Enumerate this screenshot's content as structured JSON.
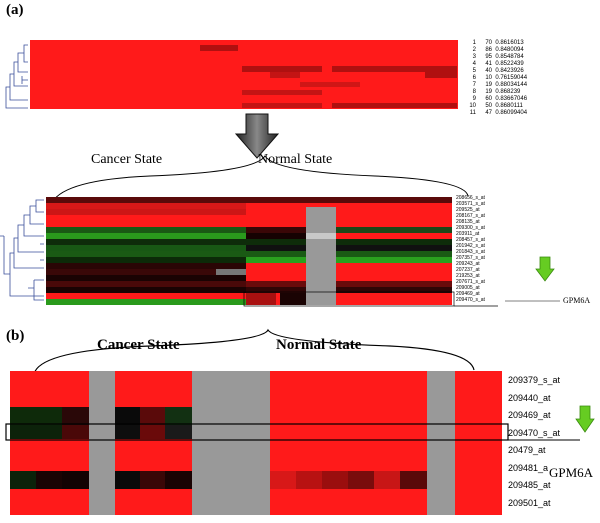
{
  "panel_a": {
    "label": "(a)",
    "top_rows": [
      {
        "idx": "1",
        "n": "70",
        "val": "0.8616013"
      },
      {
        "idx": "2",
        "n": "86",
        "val": "0.8480094"
      },
      {
        "idx": "3",
        "n": "95",
        "val": "0.8548784"
      },
      {
        "idx": "4",
        "n": "41",
        "val": "0.8522439"
      },
      {
        "idx": "5",
        "n": "40",
        "val": "0.8423926"
      },
      {
        "idx": "6",
        "n": "10",
        "val": "0.76159044"
      },
      {
        "idx": "7",
        "n": "19",
        "val": "0.88034144"
      },
      {
        "idx": "8",
        "n": "19",
        "val": "0.868239"
      },
      {
        "idx": "9",
        "n": "60",
        "val": "0.83667046"
      },
      {
        "idx": "10",
        "n": "50",
        "val": "0.8680111"
      },
      {
        "idx": "11",
        "n": "47",
        "val": "0.86099404"
      }
    ],
    "cancer_state": "Cancer State",
    "normal_state": "Normal State",
    "probe_rows": [
      "208656_s_at",
      "203571_s_at",
      "209525_at",
      "208167_s_at",
      "208135_at",
      "209300_s_at",
      "203911_at",
      "208457_s_at",
      "201942_s_at",
      "201843_s_at",
      "207357_s_at",
      "209243_at",
      "207237_at",
      "219253_at",
      "207671_s_at",
      "209005_at",
      "209469_at",
      "209470_s_at"
    ],
    "gene_label": "GPM6A"
  },
  "panel_b": {
    "label": "(b)",
    "cancer_state": "Cancer State",
    "normal_state": "Normal State",
    "probe_rows": [
      "209379_s_at",
      "209440_at",
      "209469_at",
      "209470_s_at",
      "20479_at",
      "209481_at",
      "209485_at",
      "209501_at"
    ],
    "gene_label": "GPM6A"
  },
  "colors": {
    "red": "#ff1a1a",
    "gray": "#999999",
    "arrow_green": "#66cc22"
  }
}
